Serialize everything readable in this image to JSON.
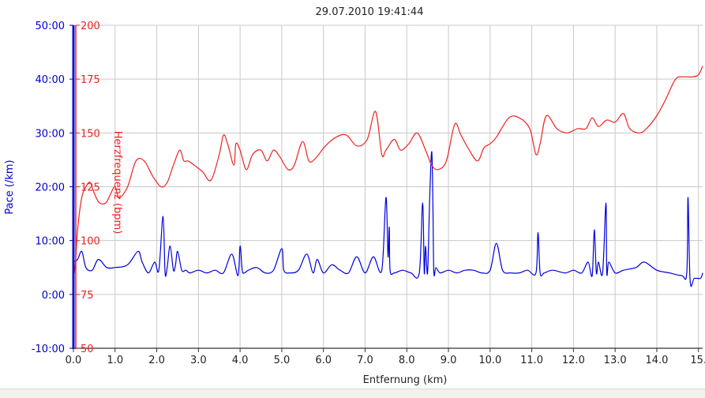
{
  "chart_data": {
    "type": "line",
    "title": "29.07.2010 19:41:44",
    "xlabel": "Entfernung (km)",
    "ylabel_left": "Pace (/km)",
    "ylabel_right": "Herzfrequenz (bpm)",
    "xlim": [
      0,
      15.1
    ],
    "x_ticks": [
      0,
      1,
      2,
      3,
      4,
      5,
      6,
      7,
      8,
      9,
      10,
      11,
      12,
      13,
      14,
      15
    ],
    "x_tick_labels": [
      "0.0",
      "1.0",
      "2.0",
      "3.0",
      "4.0",
      "5.0",
      "6.0",
      "7.0",
      "8.0",
      "9.0",
      "10.0",
      "11.0",
      "12.0",
      "13.0",
      "14.0",
      "15."
    ],
    "ylim_left_minutes": [
      -10,
      50
    ],
    "y_left_ticks": [
      -10,
      0,
      10,
      20,
      30,
      40,
      50
    ],
    "y_left_tick_labels": [
      "-10:00",
      "0:00",
      "10:00",
      "20:00",
      "30:00",
      "40:00",
      "50:00"
    ],
    "ylim_right": [
      50,
      200
    ],
    "y_right_ticks": [
      50,
      75,
      100,
      125,
      150,
      175,
      200
    ],
    "y_right_tick_labels": [
      "50",
      "75",
      "100",
      "125",
      "150",
      "175",
      "200"
    ],
    "grid": true,
    "colors": {
      "pace": "#0000dd",
      "hr": "#ee2222",
      "grid": "#c8c8c8",
      "left_axis": "#0000cc",
      "right_axis": "#ee2222"
    },
    "series": [
      {
        "axis": "left",
        "unit": "min/km",
        "color": "#0000dd",
        "x": [
          0.0,
          0.1,
          0.2,
          0.3,
          0.45,
          0.6,
          0.8,
          1.0,
          1.3,
          1.55,
          1.65,
          1.8,
          1.95,
          2.05,
          2.15,
          2.2,
          2.25,
          2.32,
          2.4,
          2.45,
          2.5,
          2.6,
          2.7,
          2.8,
          3.0,
          3.2,
          3.4,
          3.6,
          3.8,
          3.95,
          4.0,
          4.05,
          4.1,
          4.2,
          4.4,
          4.6,
          4.8,
          5.0,
          5.05,
          5.2,
          5.4,
          5.6,
          5.75,
          5.85,
          6.0,
          6.2,
          6.4,
          6.6,
          6.8,
          7.0,
          7.2,
          7.4,
          7.5,
          7.55,
          7.58,
          7.6,
          7.7,
          7.9,
          8.1,
          8.3,
          8.38,
          8.42,
          8.45,
          8.5,
          8.55,
          8.6,
          8.63,
          8.65,
          8.7,
          8.8,
          9.0,
          9.2,
          9.4,
          9.6,
          9.8,
          10.0,
          10.15,
          10.3,
          10.5,
          10.7,
          10.9,
          11.1,
          11.15,
          11.2,
          11.3,
          11.5,
          11.8,
          12.0,
          12.2,
          12.35,
          12.45,
          12.5,
          12.55,
          12.6,
          12.7,
          12.78,
          12.8,
          12.85,
          13.0,
          13.2,
          13.5,
          13.7,
          14.0,
          14.3,
          14.6,
          14.72,
          14.75,
          14.8,
          14.9,
          15.05,
          15.1
        ],
        "values": [
          6.0,
          6.5,
          8.0,
          5.0,
          4.5,
          6.5,
          5.0,
          5.0,
          5.5,
          8.0,
          6.0,
          4.0,
          6.0,
          4.5,
          14.5,
          4.0,
          5.0,
          9.0,
          4.5,
          5.5,
          8.0,
          4.5,
          4.5,
          4.0,
          4.5,
          4.0,
          4.5,
          4.0,
          7.5,
          3.5,
          9.0,
          4.5,
          4.0,
          4.5,
          5.0,
          4.0,
          4.5,
          8.5,
          4.5,
          4.0,
          4.5,
          7.5,
          4.0,
          6.5,
          4.0,
          5.5,
          4.5,
          4.0,
          7.0,
          4.0,
          7.0,
          4.5,
          18.0,
          7.0,
          12.5,
          4.5,
          4.0,
          4.5,
          4.0,
          4.0,
          17.0,
          4.0,
          9.0,
          4.0,
          18.0,
          26.5,
          15.0,
          4.0,
          5.0,
          4.0,
          4.5,
          4.0,
          4.5,
          4.5,
          4.0,
          4.5,
          9.5,
          4.5,
          4.0,
          4.0,
          4.5,
          4.0,
          11.5,
          4.0,
          4.0,
          4.5,
          4.0,
          4.5,
          4.0,
          6.0,
          3.5,
          12.0,
          4.0,
          6.0,
          4.0,
          17.0,
          4.0,
          6.0,
          4.0,
          4.5,
          5.0,
          6.0,
          4.5,
          4.0,
          3.5,
          4.0,
          18.0,
          2.5,
          3.0,
          3.0,
          4.0
        ]
      },
      {
        "axis": "right",
        "unit": "bpm",
        "color": "#ee2222",
        "x": [
          0.0,
          0.05,
          0.1,
          0.2,
          0.3,
          0.4,
          0.5,
          0.6,
          0.7,
          0.8,
          0.9,
          1.0,
          1.1,
          1.3,
          1.5,
          1.7,
          1.9,
          2.1,
          2.25,
          2.4,
          2.55,
          2.65,
          2.75,
          2.9,
          3.1,
          3.3,
          3.5,
          3.6,
          3.7,
          3.85,
          3.9,
          4.0,
          4.15,
          4.3,
          4.5,
          4.65,
          4.8,
          4.95,
          5.15,
          5.3,
          5.5,
          5.65,
          5.8,
          6.05,
          6.3,
          6.55,
          6.8,
          7.05,
          7.25,
          7.4,
          7.5,
          7.7,
          7.85,
          8.05,
          8.25,
          8.45,
          8.6,
          8.75,
          8.95,
          9.15,
          9.3,
          9.5,
          9.7,
          9.85,
          10.0,
          10.15,
          10.45,
          10.7,
          10.95,
          11.1,
          11.2,
          11.35,
          11.6,
          11.85,
          12.1,
          12.3,
          12.45,
          12.6,
          12.8,
          13.0,
          13.2,
          13.35,
          13.6,
          13.8,
          14.0,
          14.2,
          14.45,
          14.65,
          14.85,
          15.0,
          15.1
        ],
        "values": [
          82,
          90,
          105,
          120,
          125,
          127,
          122,
          118,
          117,
          118,
          122,
          125,
          120,
          125,
          137,
          137,
          130,
          125,
          127,
          135,
          142,
          137,
          137,
          135,
          132,
          128,
          140,
          149,
          145,
          135,
          145,
          142,
          133,
          140,
          142,
          137,
          142,
          139,
          133,
          135,
          146,
          137,
          138,
          144,
          148,
          149,
          144,
          147,
          160,
          140,
          142,
          147,
          142,
          145,
          150,
          142,
          135,
          133,
          137,
          154,
          149,
          142,
          137,
          143,
          145,
          148,
          157,
          157,
          152,
          140,
          145,
          158,
          152,
          150,
          152,
          152,
          157,
          153,
          156,
          155,
          159,
          152,
          150,
          153,
          158,
          165,
          175,
          176,
          176,
          177,
          181
        ]
      }
    ]
  }
}
